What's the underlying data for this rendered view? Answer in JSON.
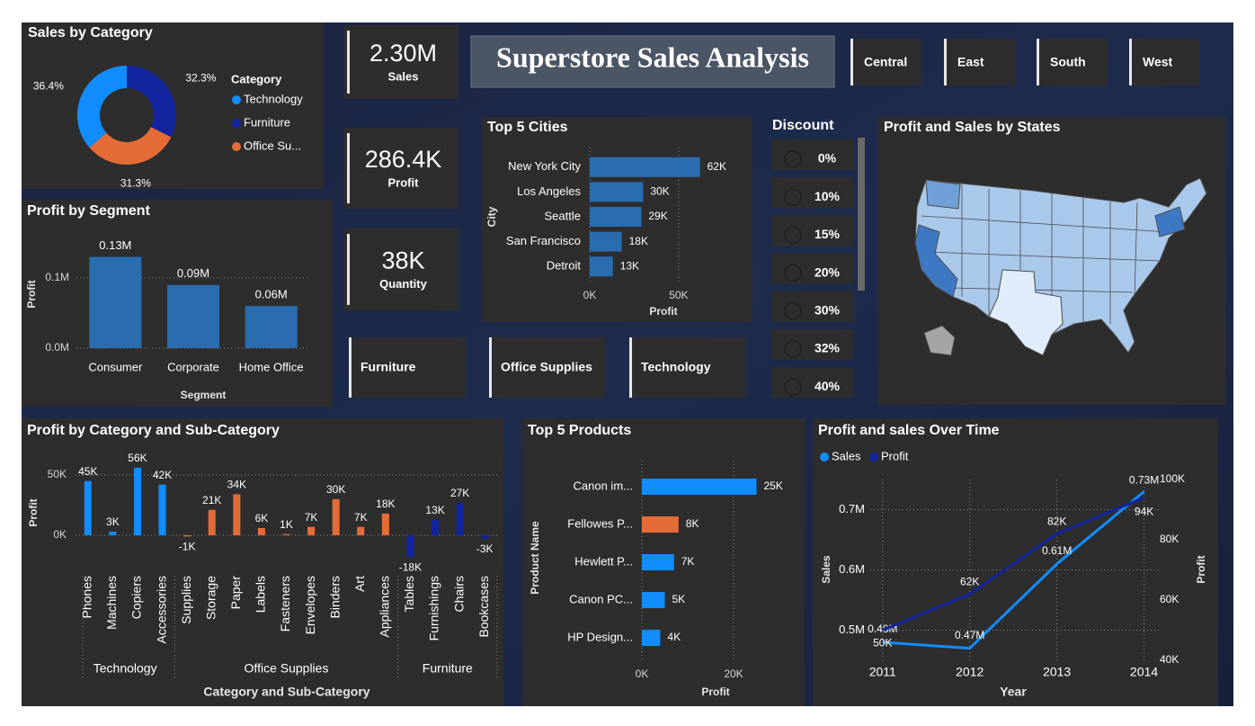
{
  "header": {
    "title": "Superstore Sales Analysis"
  },
  "kpis": [
    {
      "value": "2.30M",
      "label": "Sales"
    },
    {
      "value": "286.4K",
      "label": "Profit"
    },
    {
      "value": "38K",
      "label": "Quantity"
    }
  ],
  "region_slicer": [
    "Central",
    "East",
    "South",
    "West"
  ],
  "category_slicer": [
    "Furniture",
    "Office Supplies",
    "Technology"
  ],
  "discount_slicer": {
    "title": "Discount",
    "options": [
      "0%",
      "10%",
      "15%",
      "20%",
      "30%",
      "32%",
      "40%"
    ]
  },
  "map": {
    "title": "Profit and Sales by States"
  },
  "chart_data": [
    {
      "type": "donut",
      "title": "Sales by Category",
      "legend_title": "Category",
      "categories": [
        "Technology",
        "Furniture",
        "Office Su..."
      ],
      "values": [
        36.4,
        32.3,
        31.3
      ],
      "value_labels": [
        "36.4%",
        "32.3%",
        "31.3%"
      ],
      "colors": [
        "#118dff",
        "#12239e",
        "#e66c37"
      ],
      "legend": "right"
    },
    {
      "type": "bar",
      "title": "Profit by Segment",
      "x_label": "Segment",
      "y_label": "Profit",
      "categories": [
        "Consumer",
        "Corporate",
        "Home Office"
      ],
      "values": [
        130000,
        90000,
        60000
      ],
      "value_labels": [
        "0.13M",
        "0.09M",
        "0.06M"
      ],
      "color": "#2a6cb0",
      "ylim": [
        0,
        155000
      ],
      "yticks": [
        {
          "value": 0,
          "label": "0.0M"
        },
        {
          "value": 100000,
          "label": "0.1M"
        }
      ],
      "grid": true
    },
    {
      "type": "barh",
      "title": "Top 5 Cities",
      "x_label": "Profit",
      "y_label": "City",
      "categories": [
        "New York City",
        "Los Angeles",
        "Seattle",
        "San Francisco",
        "Detroit"
      ],
      "values": [
        62000,
        30000,
        29000,
        18000,
        13000
      ],
      "value_labels": [
        "62K",
        "30K",
        "29K",
        "18K",
        "13K"
      ],
      "color": "#2a6cb0",
      "xlim": [
        0,
        90000
      ],
      "xticks": [
        {
          "value": 0,
          "label": "0K"
        },
        {
          "value": 50000,
          "label": "50K"
        }
      ]
    },
    {
      "type": "groupedbar",
      "title": "Profit by Category and Sub-Category",
      "x_label": "Category and Sub-Category",
      "y_label": "Profit",
      "ylim": [
        -20000,
        60000
      ],
      "yticks": [
        {
          "value": 0,
          "label": "0K"
        },
        {
          "value": 50000,
          "label": "50K"
        }
      ],
      "grid": true,
      "groups": [
        {
          "name": "Technology",
          "color": "#118dff",
          "categories": [
            "Phones",
            "Machines",
            "Copiers",
            "Accessories"
          ],
          "values": [
            45000,
            3000,
            56000,
            42000
          ],
          "value_labels": [
            "45K",
            "3K",
            "56K",
            "42K"
          ]
        },
        {
          "name": "Office Supplies",
          "color": "#e66c37",
          "categories": [
            "Supplies",
            "Storage",
            "Paper",
            "Labels",
            "Fasteners",
            "Envelopes",
            "Binders",
            "Art",
            "Appliances"
          ],
          "values": [
            -1000,
            21000,
            34000,
            6000,
            1000,
            7000,
            30000,
            7000,
            18000
          ],
          "value_labels": [
            "-1K",
            "21K",
            "34K",
            "6K",
            "1K",
            "7K",
            "30K",
            "7K",
            "18K"
          ]
        },
        {
          "name": "Furniture",
          "color": "#12239e",
          "categories": [
            "Tables",
            "Furnishings",
            "Chairs",
            "Bookcases"
          ],
          "values": [
            -18000,
            13000,
            27000,
            -3000
          ],
          "value_labels": [
            "-18K",
            "13K",
            "27K",
            "-3K"
          ]
        }
      ]
    },
    {
      "type": "barh",
      "title": "Top 5 Products",
      "x_label": "Profit",
      "y_label": "Product Name",
      "categories": [
        "Canon im...",
        "Fellowes P...",
        "Hewlett P...",
        "Canon PC...",
        "HP Design..."
      ],
      "values": [
        25000,
        8000,
        7000,
        5000,
        4000
      ],
      "value_labels": [
        "25K",
        "8K",
        "7K",
        "5K",
        "4K"
      ],
      "colors": [
        "#118dff",
        "#e66c37",
        "#118dff",
        "#118dff",
        "#118dff"
      ],
      "xlim": [
        0,
        35000
      ],
      "xticks": [
        {
          "value": 0,
          "label": "0K"
        },
        {
          "value": 20000,
          "label": "20K"
        }
      ]
    },
    {
      "type": "line",
      "title": "Profit and sales Over Time",
      "x_label": "Year",
      "y_label": "Sales",
      "y2_label": "Profit",
      "x": [
        2011,
        2012,
        2013,
        2014
      ],
      "xlim": [
        2010.6,
        2014.2
      ],
      "xticks": [
        2011,
        2012,
        2013,
        2014
      ],
      "ylim": [
        450000,
        750000
      ],
      "yticks": [
        {
          "value": 500000,
          "label": "0.5M"
        },
        {
          "value": 600000,
          "label": "0.6M"
        },
        {
          "value": 700000,
          "label": "0.7M"
        }
      ],
      "y2lim": [
        40000,
        100000
      ],
      "y2ticks": [
        {
          "value": 40000,
          "label": "40K"
        },
        {
          "value": 60000,
          "label": "60K"
        },
        {
          "value": 80000,
          "label": "80K"
        },
        {
          "value": 100000,
          "label": "100K"
        }
      ],
      "grid": true,
      "legend": "top-left",
      "series": [
        {
          "name": "Sales",
          "color": "#118dff",
          "values": [
            480000,
            470000,
            610000,
            730000
          ],
          "value_labels": [
            "0.48M",
            "0.47M",
            "0.61M",
            "0.73M"
          ]
        },
        {
          "name": "Profit",
          "color": "#12239e",
          "axis": "y2",
          "values": [
            50000,
            62000,
            82000,
            94000
          ],
          "value_labels": [
            "50K",
            "62K",
            "82K",
            "94K"
          ]
        }
      ]
    }
  ]
}
